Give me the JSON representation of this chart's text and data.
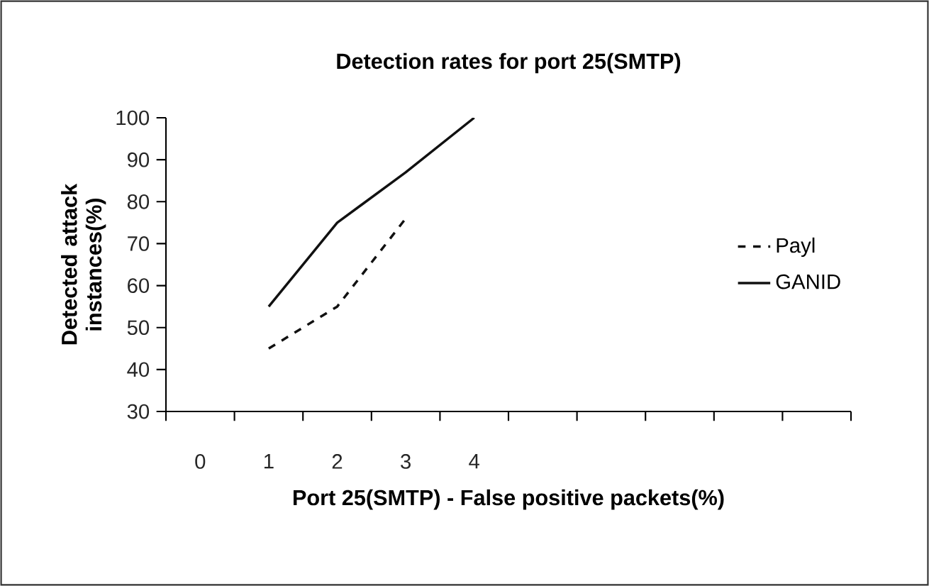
{
  "chart_data": {
    "type": "line",
    "title": "Detection rates for port 25(SMTP)",
    "xlabel": "Port 25(SMTP) - False positive packets(%)",
    "ylabel": "Detected attack instances(%)",
    "categories": [
      "0",
      "1",
      "2",
      "3",
      "4",
      null,
      null,
      null,
      null,
      null
    ],
    "series": [
      {
        "name": "Payl",
        "color": "#111111",
        "line_style": "dashed",
        "values": [
          null,
          45,
          55,
          76,
          null,
          null,
          null,
          null,
          null,
          null
        ]
      },
      {
        "name": "GANID",
        "color": "#111111",
        "line_style": "solid",
        "values": [
          null,
          55,
          75,
          87,
          100,
          null,
          null,
          null,
          null,
          null
        ]
      }
    ],
    "ylim": [
      30,
      100
    ],
    "yticks": [
      30,
      40,
      50,
      60,
      70,
      80,
      90,
      100
    ],
    "grid": false,
    "legend": "right",
    "marker": "none"
  }
}
